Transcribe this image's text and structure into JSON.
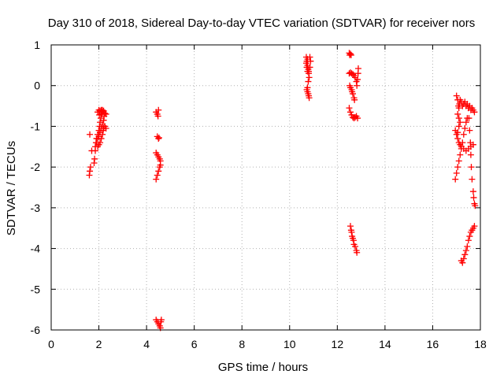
{
  "chart_data": {
    "type": "scatter",
    "title": "Day 310 of 2018, Sidereal Day-to-day VTEC variation (SDTVAR) for receiver nors",
    "xlabel": "GPS time / hours",
    "ylabel": "SDTVAR / TECUs",
    "xlim": [
      0,
      18
    ],
    "ylim": [
      -6,
      1
    ],
    "xticks": [
      0,
      2,
      4,
      6,
      8,
      10,
      12,
      14,
      16,
      18
    ],
    "yticks": [
      -6,
      -5,
      -4,
      -3,
      -2,
      -1,
      0,
      1
    ],
    "xtick_labels": [
      "0",
      "2",
      "4",
      "6",
      "8",
      "10",
      "12",
      "14",
      "16",
      "18"
    ],
    "ytick_labels": [
      "-6",
      "-5",
      "-4",
      "-3",
      "-2",
      "-1",
      "0",
      "1"
    ],
    "grid": true,
    "marker": "+",
    "marker_color": "#ff0000",
    "series": [
      {
        "name": "SDTVAR",
        "segments": [
          [
            [
              1.6,
              -2.2
            ],
            [
              1.62,
              -2.1
            ],
            [
              1.65,
              -2.0
            ],
            [
              1.7,
              -1.6
            ],
            [
              1.62,
              -1.2
            ]
          ],
          [
            [
              1.8,
              -1.9
            ],
            [
              1.82,
              -1.8
            ],
            [
              1.85,
              -1.6
            ],
            [
              1.88,
              -1.4
            ],
            [
              1.9,
              -1.3
            ],
            [
              1.95,
              -1.2
            ],
            [
              2.0,
              -1.1
            ],
            [
              2.03,
              -1.0
            ],
            [
              2.05,
              -0.9
            ],
            [
              2.08,
              -0.8
            ],
            [
              2.1,
              -0.7
            ],
            [
              2.12,
              -0.65
            ],
            [
              2.15,
              -0.6
            ]
          ],
          [
            [
              1.95,
              -1.5
            ],
            [
              2.0,
              -1.45
            ],
            [
              2.05,
              -1.4
            ],
            [
              2.1,
              -1.3
            ],
            [
              2.15,
              -1.2
            ],
            [
              2.18,
              -1.1
            ],
            [
              2.2,
              -1.05
            ],
            [
              2.25,
              -1.0
            ],
            [
              2.3,
              -1.05
            ]
          ],
          [
            [
              1.95,
              -0.65
            ],
            [
              2.0,
              -0.6
            ],
            [
              2.05,
              -0.62
            ],
            [
              2.1,
              -0.6
            ],
            [
              2.15,
              -0.65
            ],
            [
              2.2,
              -0.62
            ],
            [
              2.25,
              -0.68
            ],
            [
              2.3,
              -0.7
            ],
            [
              2.02,
              -0.72
            ],
            [
              2.12,
              -0.7
            ]
          ],
          [
            [
              1.85,
              -1.5
            ],
            [
              1.9,
              -1.4
            ],
            [
              1.95,
              -1.3
            ],
            [
              2.0,
              -1.25
            ],
            [
              2.05,
              -1.15
            ],
            [
              2.1,
              -1.05
            ],
            [
              2.15,
              -0.95
            ],
            [
              2.2,
              -0.85
            ],
            [
              2.22,
              -0.75
            ]
          ],
          [
            [
              4.4,
              -0.65
            ],
            [
              4.45,
              -0.7
            ],
            [
              4.5,
              -0.6
            ],
            [
              4.48,
              -0.75
            ]
          ],
          [
            [
              4.45,
              -1.25
            ],
            [
              4.5,
              -1.3
            ],
            [
              4.52,
              -1.28
            ]
          ],
          [
            [
              4.4,
              -1.65
            ],
            [
              4.45,
              -1.7
            ],
            [
              4.5,
              -1.75
            ],
            [
              4.55,
              -1.8
            ],
            [
              4.58,
              -1.85
            ]
          ],
          [
            [
              4.4,
              -2.3
            ],
            [
              4.45,
              -2.2
            ],
            [
              4.5,
              -2.1
            ],
            [
              4.55,
              -2.0
            ],
            [
              4.58,
              -1.95
            ]
          ],
          [
            [
              4.4,
              -5.75
            ],
            [
              4.45,
              -5.8
            ],
            [
              4.5,
              -5.85
            ],
            [
              4.55,
              -5.9
            ],
            [
              4.58,
              -5.95
            ],
            [
              4.6,
              -5.8
            ],
            [
              4.62,
              -5.75
            ]
          ],
          [
            [
              10.7,
              0.7
            ],
            [
              10.72,
              0.6
            ],
            [
              10.75,
              0.5
            ],
            [
              10.78,
              0.4
            ],
            [
              10.8,
              0.3
            ],
            [
              10.82,
              0.2
            ],
            [
              10.78,
              0.1
            ],
            [
              10.8,
              0.35
            ],
            [
              10.85,
              0.45
            ],
            [
              10.88,
              0.6
            ],
            [
              10.85,
              0.7
            ],
            [
              10.75,
              0.65
            ],
            [
              10.7,
              0.55
            ],
            [
              10.72,
              0.45
            ],
            [
              10.75,
              0.35
            ]
          ],
          [
            [
              10.72,
              -0.1
            ],
            [
              10.75,
              -0.15
            ],
            [
              10.78,
              -0.2
            ],
            [
              10.8,
              -0.25
            ],
            [
              10.82,
              -0.3
            ],
            [
              10.75,
              -0.05
            ]
          ],
          [
            [
              12.5,
              0.8
            ],
            [
              12.52,
              0.75
            ],
            [
              12.55,
              0.78
            ],
            [
              12.58,
              0.75
            ]
          ],
          [
            [
              12.5,
              0.3
            ],
            [
              12.55,
              0.32
            ],
            [
              12.6,
              0.3
            ],
            [
              12.65,
              0.28
            ],
            [
              12.7,
              0.25
            ],
            [
              12.75,
              0.2
            ],
            [
              12.8,
              0.1
            ],
            [
              12.82,
              0.0
            ],
            [
              12.85,
              0.15
            ],
            [
              12.87,
              0.3
            ],
            [
              12.88,
              0.42
            ]
          ],
          [
            [
              12.52,
              0.0
            ],
            [
              12.55,
              -0.05
            ],
            [
              12.6,
              -0.1
            ],
            [
              12.62,
              -0.15
            ],
            [
              12.65,
              -0.2
            ],
            [
              12.7,
              -0.3
            ],
            [
              12.72,
              -0.35
            ]
          ],
          [
            [
              12.5,
              -0.55
            ],
            [
              12.55,
              -0.65
            ],
            [
              12.6,
              -0.72
            ],
            [
              12.65,
              -0.78
            ],
            [
              12.7,
              -0.8
            ],
            [
              12.75,
              -0.78
            ],
            [
              12.8,
              -0.75
            ],
            [
              12.85,
              -0.8
            ]
          ],
          [
            [
              12.55,
              -3.45
            ],
            [
              12.58,
              -3.55
            ],
            [
              12.6,
              -3.6
            ],
            [
              12.62,
              -3.7
            ],
            [
              12.65,
              -3.75
            ],
            [
              12.68,
              -3.8
            ],
            [
              12.7,
              -3.9
            ],
            [
              12.75,
              -3.95
            ],
            [
              12.8,
              -4.05
            ],
            [
              12.82,
              -4.1
            ]
          ],
          [
            [
              17.0,
              -0.25
            ],
            [
              17.05,
              -0.35
            ],
            [
              17.08,
              -0.5
            ],
            [
              17.1,
              -0.55
            ],
            [
              17.12,
              -0.45
            ],
            [
              17.15,
              -0.35
            ],
            [
              17.2,
              -0.4
            ],
            [
              17.25,
              -0.5
            ],
            [
              17.3,
              -0.45
            ],
            [
              17.35,
              -0.4
            ],
            [
              17.4,
              -0.5
            ],
            [
              17.45,
              -0.45
            ],
            [
              17.5,
              -0.55
            ],
            [
              17.55,
              -0.5
            ],
            [
              17.6,
              -0.6
            ],
            [
              17.65,
              -0.55
            ],
            [
              17.7,
              -0.6
            ],
            [
              17.75,
              -0.65
            ]
          ],
          [
            [
              16.95,
              -1.1
            ],
            [
              17.0,
              -1.2
            ],
            [
              17.05,
              -1.3
            ],
            [
              17.1,
              -1.4
            ],
            [
              17.15,
              -1.45
            ],
            [
              17.2,
              -1.5
            ],
            [
              17.3,
              -1.55
            ],
            [
              17.4,
              -1.6
            ],
            [
              17.5,
              -1.55
            ],
            [
              17.6,
              -1.5
            ],
            [
              17.7,
              -1.45
            ]
          ],
          [
            [
              16.95,
              -2.3
            ],
            [
              17.0,
              -2.15
            ],
            [
              17.05,
              -2.0
            ],
            [
              17.1,
              -1.85
            ],
            [
              17.15,
              -1.7
            ],
            [
              17.2,
              -1.55
            ],
            [
              17.25,
              -1.4
            ],
            [
              17.3,
              -1.2
            ],
            [
              17.35,
              -1.05
            ],
            [
              17.4,
              -0.9
            ],
            [
              17.45,
              -0.8
            ]
          ],
          [
            [
              17.5,
              -0.55
            ],
            [
              17.52,
              -0.8
            ],
            [
              17.55,
              -1.1
            ],
            [
              17.58,
              -1.4
            ],
            [
              17.6,
              -1.7
            ],
            [
              17.62,
              -2.0
            ],
            [
              17.65,
              -2.3
            ],
            [
              17.7,
              -2.6
            ],
            [
              17.72,
              -2.75
            ],
            [
              17.75,
              -2.9
            ],
            [
              17.78,
              -2.95
            ]
          ],
          [
            [
              17.2,
              -4.3
            ],
            [
              17.25,
              -4.35
            ],
            [
              17.3,
              -4.25
            ],
            [
              17.35,
              -4.15
            ],
            [
              17.4,
              -4.05
            ],
            [
              17.45,
              -3.95
            ],
            [
              17.5,
              -3.8
            ],
            [
              17.55,
              -3.7
            ],
            [
              17.6,
              -3.6
            ],
            [
              17.65,
              -3.55
            ],
            [
              17.7,
              -3.5
            ],
            [
              17.75,
              -3.45
            ]
          ],
          [
            [
              17.05,
              -0.7
            ],
            [
              17.1,
              -0.8
            ],
            [
              17.15,
              -0.9
            ],
            [
              17.1,
              -1.0
            ],
            [
              17.05,
              -1.15
            ]
          ]
        ]
      }
    ]
  }
}
